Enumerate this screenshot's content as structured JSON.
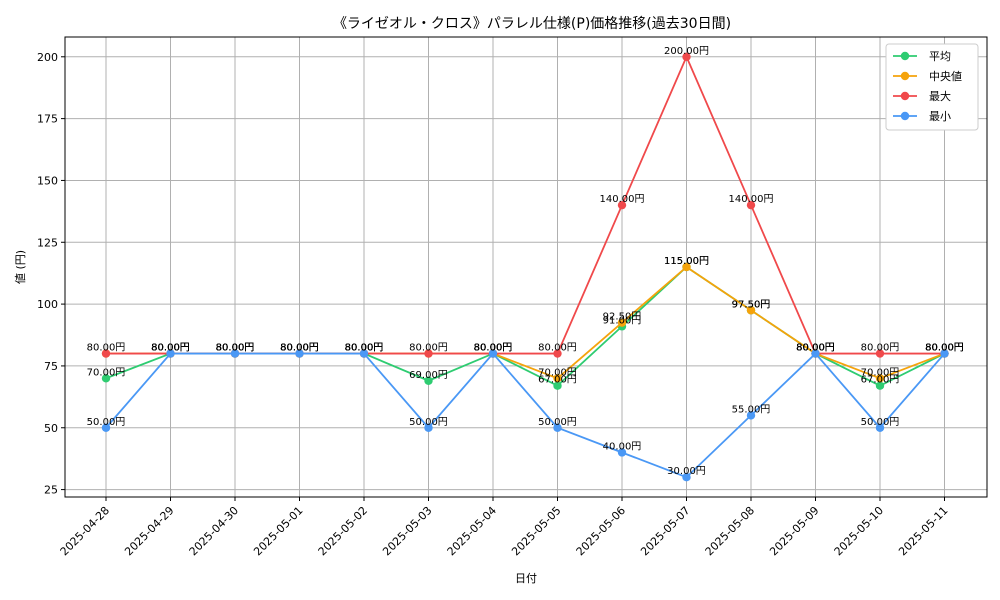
{
  "chart_data": {
    "type": "line",
    "title": "《ライゼオル・クロス》パラレル仕様(P)価格推移(過去30日間)",
    "xlabel": "日付",
    "ylabel": "値 (円)",
    "ylim": [
      22,
      208
    ],
    "yticks": [
      25,
      50,
      75,
      100,
      125,
      150,
      175,
      200
    ],
    "grid": true,
    "legend_position": "top-right",
    "categories": [
      "2025-04-28",
      "2025-04-29",
      "2025-04-30",
      "2025-05-01",
      "2025-05-02",
      "2025-05-03",
      "2025-05-04",
      "2025-05-05",
      "2025-05-06",
      "2025-05-07",
      "2025-05-08",
      "2025-05-09",
      "2025-05-10",
      "2025-05-11"
    ],
    "series": [
      {
        "name": "平均",
        "color": "#2ecc71",
        "values": [
          70,
          80,
          80,
          80,
          80,
          69,
          80,
          67,
          91,
          115,
          97.5,
          80,
          67,
          80
        ]
      },
      {
        "name": "中央値",
        "color": "#f5a30b",
        "values": [
          80,
          80,
          80,
          80,
          80,
          80,
          80,
          70,
          92.5,
          115,
          97.5,
          80,
          70,
          80
        ]
      },
      {
        "name": "最大",
        "color": "#f0494b",
        "values": [
          80,
          80,
          80,
          80,
          80,
          80,
          80,
          80,
          140,
          200,
          140,
          80,
          80,
          80
        ]
      },
      {
        "name": "最小",
        "color": "#4a98f5",
        "values": [
          50,
          80,
          80,
          80,
          80,
          50,
          80,
          50,
          40,
          30,
          55,
          80,
          50,
          80
        ]
      }
    ],
    "labels": [
      {
        "series": 0,
        "text": [
          "70.00円",
          "80.00円",
          "80.00円",
          "80.00円",
          "80.00円",
          "69.00円",
          "80.00円",
          "67.00円",
          "91.00円",
          "115.00円",
          "97.50円",
          "80.00円",
          "67.00円",
          "80.00円"
        ]
      },
      {
        "series": 1,
        "text": [
          "",
          "80.00円",
          "80.00円",
          "80.00円",
          "80.00円",
          "",
          "80.00円",
          "70.00円",
          "92.50円",
          "115.00円",
          "97.50円",
          "80.00円",
          "70.00円",
          "80.00円"
        ]
      },
      {
        "series": 2,
        "text": [
          "80.00円",
          "80.00円",
          "80.00円",
          "80.00円",
          "80.00円",
          "80.00円",
          "80.00円",
          "80.00円",
          "140.00円",
          "200.00円",
          "140.00円",
          "80.00円",
          "80.00円",
          "80.00円"
        ]
      },
      {
        "series": 3,
        "text": [
          "50.00円",
          "80.00円",
          "80.00円",
          "80.00円",
          "80.00円",
          "50.00円",
          "80.00円",
          "50.00円",
          "40.00円",
          "30.00円",
          "55.00円",
          "80.00円",
          "50.00円",
          "80.00円"
        ]
      }
    ]
  }
}
